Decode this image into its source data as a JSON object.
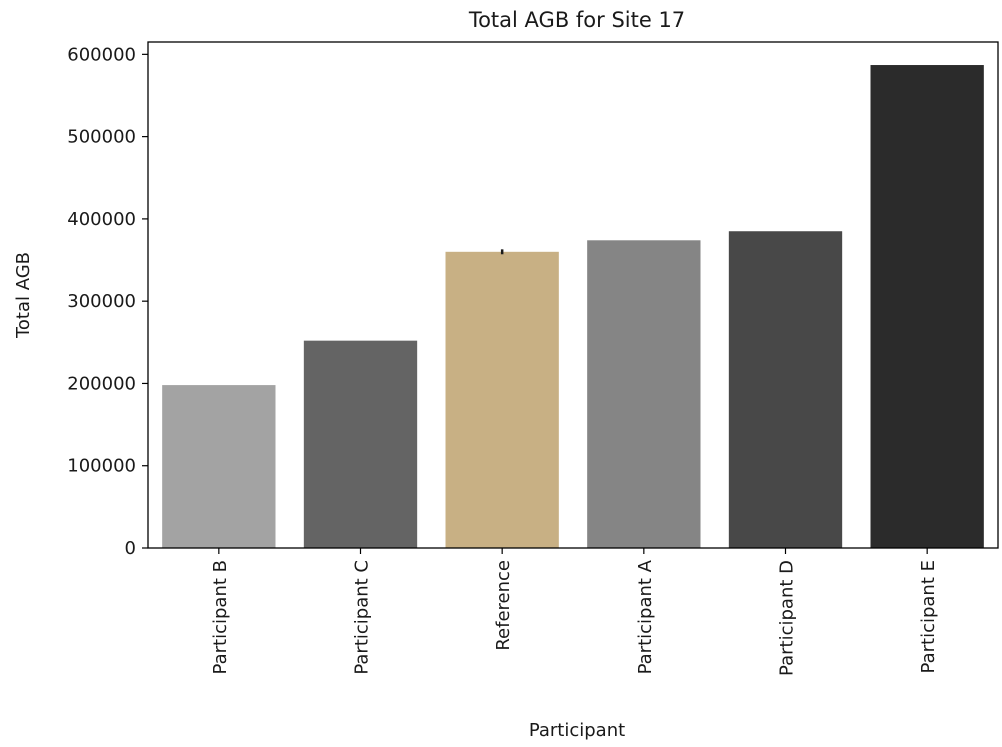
{
  "chart_data": {
    "type": "bar",
    "title": "Total AGB for Site 17",
    "xlabel": "Participant",
    "ylabel": "Total AGB",
    "categories": [
      "Participant B",
      "Participant C",
      "Reference",
      "Participant A",
      "Participant D",
      "Participant E"
    ],
    "values": [
      198000,
      252000,
      360000,
      374000,
      385000,
      587000
    ],
    "error_bars": [
      null,
      null,
      {
        "low": 357000,
        "high": 363000
      },
      null,
      null,
      null
    ],
    "colors": [
      "#a3a3a3",
      "#646464",
      "#c8b084",
      "#858585",
      "#484848",
      "#2b2b2b"
    ],
    "ylim": [
      0,
      615000
    ],
    "yticks": [
      0,
      100000,
      200000,
      300000,
      400000,
      500000,
      600000
    ],
    "ytick_labels": [
      "0",
      "100000",
      "200000",
      "300000",
      "400000",
      "500000",
      "600000"
    ],
    "grid": false,
    "legend": "none"
  }
}
